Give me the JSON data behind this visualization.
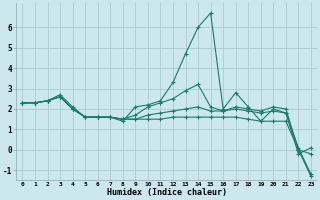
{
  "xlabel": "Humidex (Indice chaleur)",
  "background_color": "#cce8ee",
  "grid_color": "#aacccc",
  "line_color": "#1a7a6e",
  "x_values": [
    0,
    1,
    2,
    3,
    4,
    5,
    6,
    7,
    8,
    9,
    10,
    11,
    12,
    13,
    14,
    15,
    16,
    17,
    18,
    19,
    20,
    21,
    22,
    23
  ],
  "series": [
    [
      2.3,
      2.3,
      2.4,
      2.7,
      2.1,
      1.6,
      1.6,
      1.6,
      1.4,
      2.1,
      2.2,
      2.4,
      3.3,
      4.7,
      6.0,
      6.7,
      2.0,
      2.8,
      2.1,
      1.4,
      2.0,
      1.8,
      -0.2,
      0.1
    ],
    [
      2.3,
      2.3,
      2.4,
      2.6,
      2.0,
      1.6,
      1.6,
      1.6,
      1.5,
      1.7,
      2.1,
      2.3,
      2.5,
      2.9,
      3.2,
      2.1,
      1.9,
      2.1,
      2.0,
      1.9,
      2.1,
      2.0,
      0.0,
      -0.2
    ],
    [
      2.3,
      2.3,
      2.4,
      2.6,
      2.0,
      1.6,
      1.6,
      1.6,
      1.5,
      1.5,
      1.7,
      1.8,
      1.9,
      2.0,
      2.1,
      1.9,
      1.9,
      2.0,
      1.9,
      1.8,
      1.9,
      1.8,
      0.1,
      -1.2
    ],
    [
      2.3,
      2.3,
      2.4,
      2.6,
      2.0,
      1.6,
      1.6,
      1.6,
      1.5,
      1.5,
      1.5,
      1.5,
      1.6,
      1.6,
      1.6,
      1.6,
      1.6,
      1.6,
      1.5,
      1.4,
      1.4,
      1.4,
      0.0,
      -1.3
    ]
  ],
  "ylim": [
    -1.5,
    7.2
  ],
  "yticks": [
    -1,
    0,
    1,
    2,
    3,
    4,
    5,
    6
  ],
  "xlim": [
    -0.5,
    23.5
  ]
}
